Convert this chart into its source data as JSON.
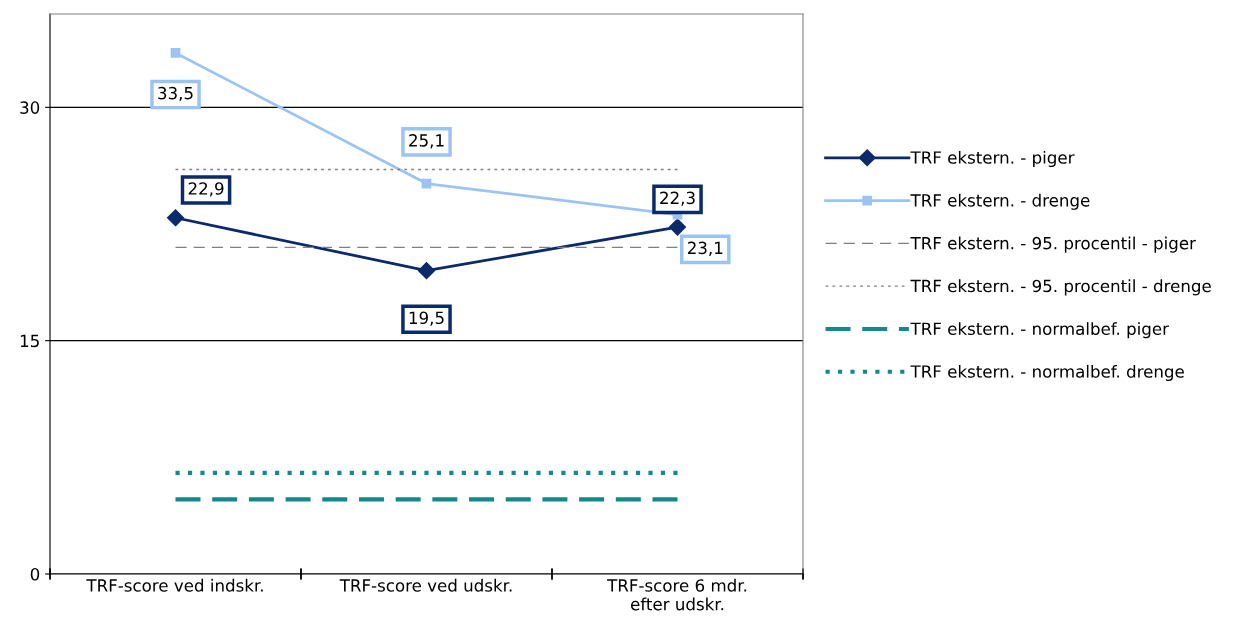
{
  "chart_data": {
    "type": "line",
    "categories": [
      "TRF-score ved indskr.",
      "TRF-score ved udskr.",
      "TRF-score 6 mdr. efter udskr."
    ],
    "series": [
      {
        "name": "TRF ekstern. - piger",
        "color": "#0b2a6b",
        "values": [
          22.9,
          19.5,
          22.3
        ],
        "marker": "diamond",
        "line_style": "solid",
        "value_labels": [
          "22,9",
          "19,5",
          "22,3"
        ]
      },
      {
        "name": "TRF ekstern. - drenge",
        "color": "#9cc4f2",
        "values": [
          33.5,
          25.1,
          23.1
        ],
        "marker": "square",
        "line_style": "solid",
        "value_labels": [
          "33,5",
          "25,1",
          "23,1"
        ]
      },
      {
        "name": "TRF ekstern. - 95. procentil - piger",
        "color": "#808080",
        "values": [
          21,
          21,
          21
        ],
        "marker": "none",
        "line_style": "dashed"
      },
      {
        "name": "TRF ekstern. - 95. procentil - drenge",
        "color": "#808080",
        "values": [
          26,
          26,
          26
        ],
        "marker": "none",
        "line_style": "dotted"
      },
      {
        "name": "TRF ekstern. - normalbef. piger",
        "color": "#128a8a",
        "values": [
          4.8,
          4.8,
          4.8
        ],
        "marker": "none",
        "line_style": "dashed"
      },
      {
        "name": "TRF ekstern. - normalbef. drenge",
        "color": "#128a8a",
        "values": [
          6.5,
          6.5,
          6.5
        ],
        "marker": "none",
        "line_style": "dotted"
      }
    ],
    "ylim": [
      0,
      36
    ],
    "yticks": [
      0,
      15,
      30
    ],
    "grid": "y",
    "legend": "right"
  }
}
